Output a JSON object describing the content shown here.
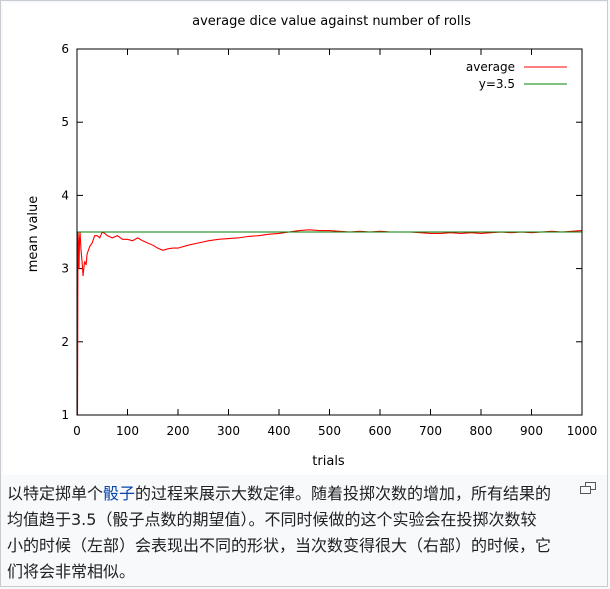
{
  "chart_data": {
    "type": "line",
    "title": "average dice value against number of rolls",
    "xlabel": "trials",
    "ylabel": "mean value",
    "xlim": [
      0,
      1000
    ],
    "ylim": [
      1,
      6
    ],
    "xticks": [
      0,
      100,
      200,
      300,
      400,
      500,
      600,
      700,
      800,
      900,
      1000
    ],
    "yticks": [
      1,
      2,
      3,
      4,
      5,
      6
    ],
    "legend_position": "top-right",
    "series": [
      {
        "name": "average",
        "color": "#ff0000",
        "x": [
          1,
          2,
          3,
          4,
          5,
          6,
          8,
          10,
          12,
          15,
          18,
          20,
          25,
          30,
          35,
          40,
          45,
          50,
          55,
          60,
          70,
          80,
          90,
          100,
          110,
          120,
          130,
          140,
          150,
          160,
          170,
          180,
          190,
          200,
          220,
          240,
          260,
          280,
          300,
          320,
          340,
          360,
          380,
          400,
          420,
          440,
          460,
          480,
          500,
          520,
          540,
          560,
          580,
          600,
          620,
          640,
          660,
          680,
          700,
          720,
          740,
          760,
          780,
          800,
          820,
          840,
          860,
          880,
          900,
          920,
          940,
          960,
          980,
          1000
        ],
        "y": [
          1.0,
          3.5,
          3.33,
          3.0,
          3.4,
          3.5,
          3.25,
          3.1,
          2.9,
          3.1,
          3.05,
          3.2,
          3.3,
          3.35,
          3.45,
          3.45,
          3.42,
          3.5,
          3.48,
          3.45,
          3.42,
          3.45,
          3.4,
          3.4,
          3.38,
          3.42,
          3.38,
          3.35,
          3.32,
          3.28,
          3.25,
          3.27,
          3.28,
          3.28,
          3.32,
          3.35,
          3.38,
          3.4,
          3.41,
          3.42,
          3.44,
          3.45,
          3.47,
          3.48,
          3.5,
          3.52,
          3.53,
          3.52,
          3.52,
          3.51,
          3.5,
          3.51,
          3.5,
          3.51,
          3.5,
          3.5,
          3.5,
          3.49,
          3.48,
          3.48,
          3.49,
          3.48,
          3.49,
          3.48,
          3.49,
          3.5,
          3.49,
          3.5,
          3.49,
          3.5,
          3.51,
          3.5,
          3.51,
          3.52
        ]
      },
      {
        "name": "y=3.5",
        "color": "#008000",
        "x": [
          0,
          1000
        ],
        "y": [
          3.5,
          3.5
        ]
      }
    ]
  },
  "caption": {
    "text_before": "以特定掷单个",
    "link_text": "骰子",
    "text_after": "的过程来展示大数定律。随着投掷次数的增加，所有结果的均值趋于3.5（骰子点数的期望值）。不同时候做的这个实验会在投掷次数较小的时候（左部）会表现出不同的形状，当次数变得很大（右部）的时候，它们将会非常相似。"
  },
  "enlarge_icon": "enlarge-icon"
}
